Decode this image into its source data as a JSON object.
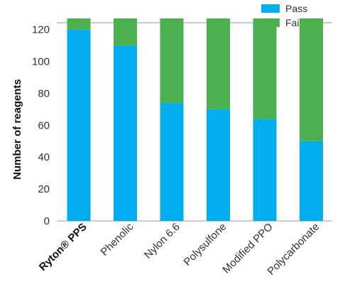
{
  "chart_data": {
    "type": "bar",
    "stacked": true,
    "categories": [
      "Ryton® PPS",
      "Phenolic",
      "Nylon 6.6",
      "Polysulfone",
      "Modified PPO",
      "Polycarbonate"
    ],
    "series": [
      {
        "name": "Pass",
        "values": [
          120,
          110,
          74,
          70,
          64,
          50
        ],
        "color": "#00aeef"
      },
      {
        "name": "Fail",
        "values": [
          7,
          17,
          53,
          57,
          63,
          77
        ],
        "color": "#4caf50"
      }
    ],
    "xlabel": "",
    "ylabel": "Number of reagents",
    "ylim": [
      0,
      130
    ],
    "yticks": [
      0,
      20,
      40,
      60,
      80,
      100,
      120
    ],
    "legend": "top-right",
    "grid": false
  }
}
